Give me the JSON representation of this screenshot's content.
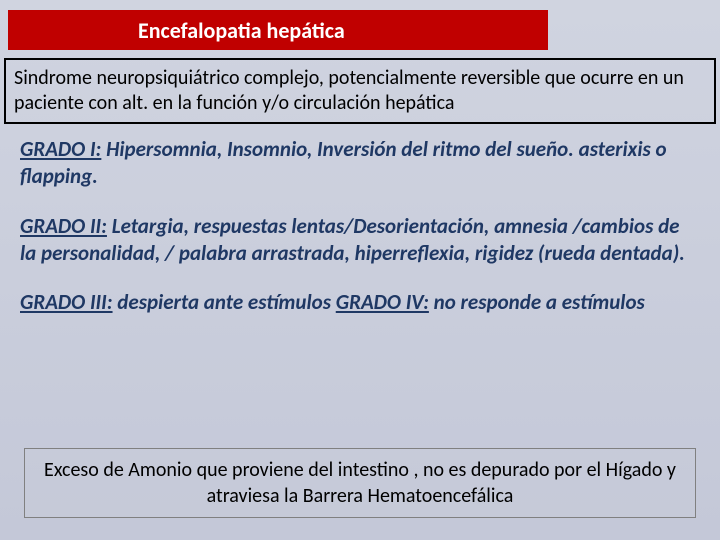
{
  "title": "Encefalopatia hepática",
  "definition": "Sindrome neuropsiquiátrico complejo, potencialmente reversible que ocurre en un paciente con alt.  en la función y/o circulación hepática",
  "grades": [
    {
      "label": "GRADO I:",
      "text": " Hipersomnia, Insomnio, Inversión del ritmo del sueño. asterixis o flapping."
    },
    {
      "label": "GRADO II:",
      "text": " Letargia, respuestas lentas/Desorientación, amnesia /cambios de la personalidad, / palabra arrastrada, hiperreflexia, rigidez (rueda dentada)."
    }
  ],
  "g3label": "GRADO III:",
  "g3text": " despierta ante estímulos ",
  "g4label": "GRADO IV:",
  "g4text": " no responde a estímulos",
  "bottom": "Exceso de Amonio que proviene del intestino , no es depurado por el Hígado y  atraviesa la Barrera Hematoencefálica",
  "colors": {
    "title_bg": "#c00000",
    "title_fg": "#ffffff",
    "body_text": "#1f3864",
    "slide_bg_top": "#d0d4e0",
    "slide_bg_bot": "#c4c8d8"
  },
  "fonts": {
    "title_size_pt": 22,
    "defn_size_pt": 20,
    "grade_size_pt": 21,
    "bottom_size_pt": 20
  }
}
